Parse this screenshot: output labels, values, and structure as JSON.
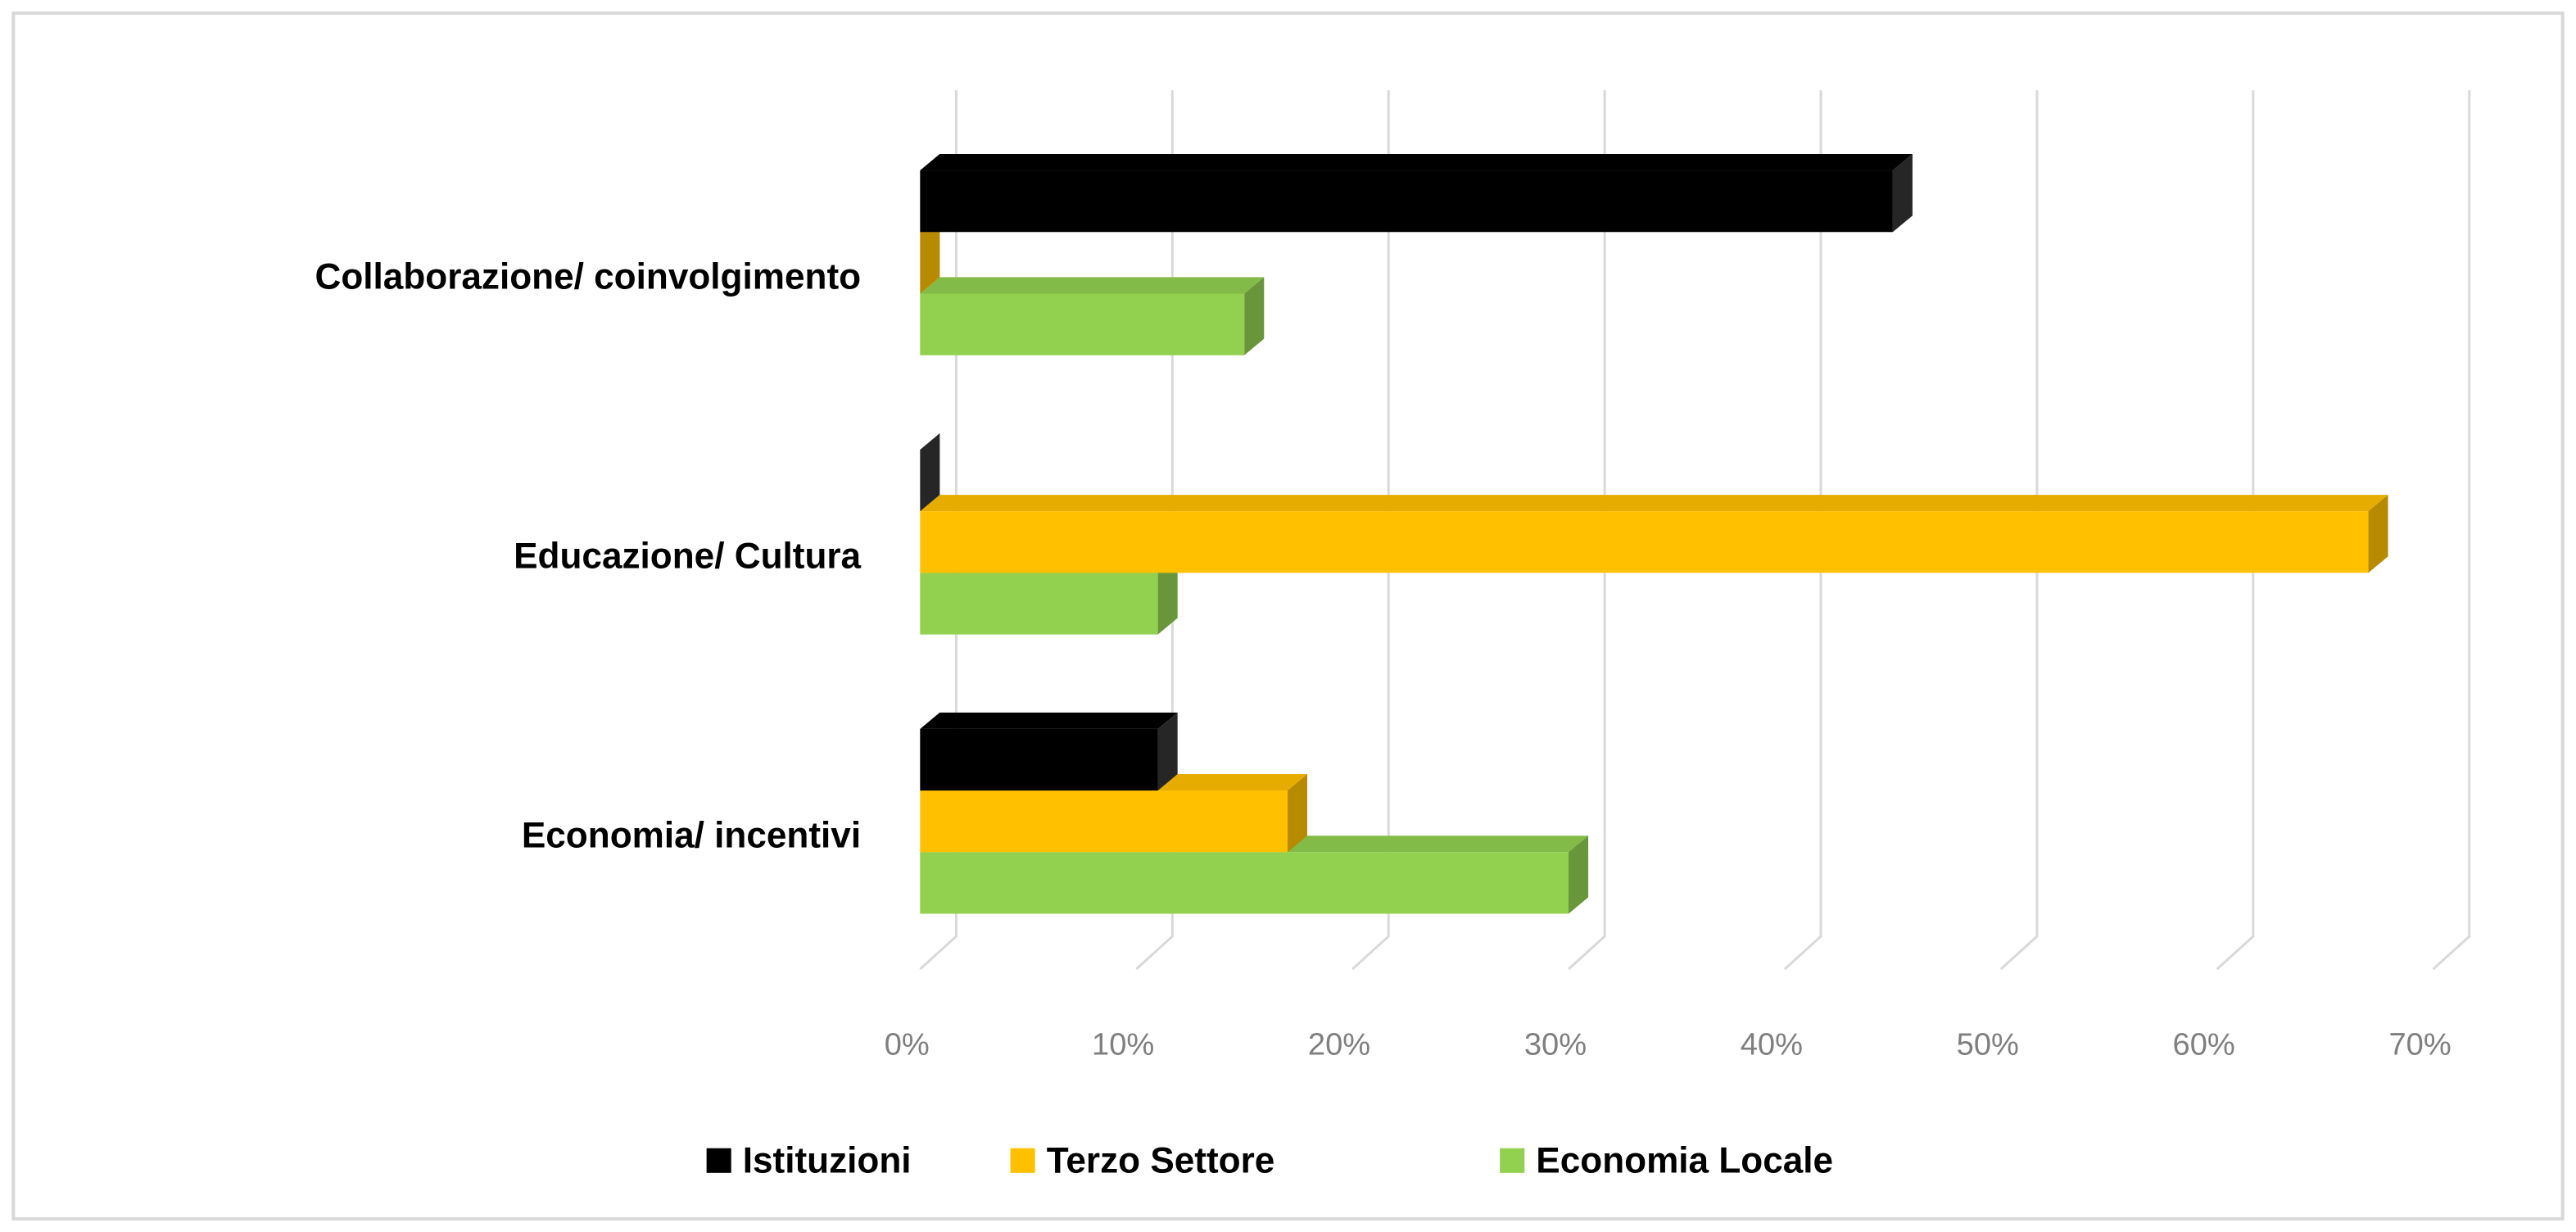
{
  "chart_data": {
    "type": "bar3d",
    "orientation": "horizontal",
    "categories": [
      "Collaborazione/ coinvolgimento",
      "Educazione/ Cultura",
      "Economia/ incentivi"
    ],
    "series": [
      {
        "name": "Istituzioni",
        "color": "#000000",
        "values": [
          45,
          0,
          11
        ]
      },
      {
        "name": "Terzo Settore",
        "color": "#ffc000",
        "values": [
          0,
          67,
          17
        ]
      },
      {
        "name": "Economia Locale",
        "color": "#92d050",
        "values": [
          15,
          11,
          30
        ]
      }
    ],
    "xlim": [
      0,
      70
    ],
    "xticks": [
      {
        "value": 0,
        "label": "0%"
      },
      {
        "value": 10,
        "label": "10%"
      },
      {
        "value": 20,
        "label": "20%"
      },
      {
        "value": 30,
        "label": "30%"
      },
      {
        "value": 40,
        "label": "40%"
      },
      {
        "value": 50,
        "label": "50%"
      },
      {
        "value": 60,
        "label": "60%"
      },
      {
        "value": 70,
        "label": "70%"
      }
    ],
    "grid": true,
    "legend": "bottom"
  }
}
